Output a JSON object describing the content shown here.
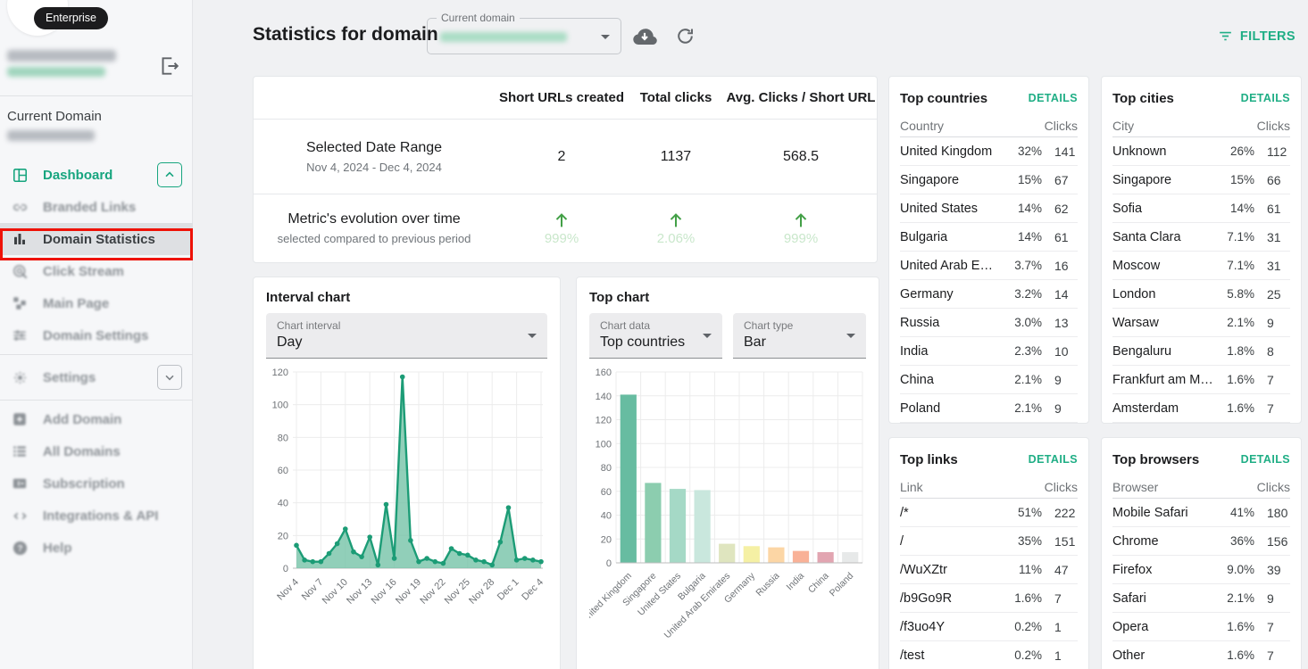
{
  "colors": {
    "accent_green": "#1fae85",
    "chart_line_green": "#1c9c76",
    "chart_area_green": "#76c3a8",
    "trend_arrow_green": "#43a047",
    "annotation_red": "#ee1207",
    "badge_black": "#1c1c1e"
  },
  "sidebar": {
    "badge": "Enterprise",
    "current_domain_label": "Current Domain",
    "nav": [
      {
        "label": "Dashboard",
        "icon": "dashboard",
        "state": "active-green",
        "chevron": "up"
      },
      {
        "label": "Branded Links",
        "icon": "link",
        "state": "blurred"
      },
      {
        "label": "Domain Statistics",
        "icon": "bar-chart",
        "state": "selected"
      },
      {
        "label": "Click Stream",
        "icon": "click-stream",
        "state": "blurred"
      },
      {
        "label": "Main Page",
        "icon": "main-page",
        "state": "blurred"
      },
      {
        "label": "Domain Settings",
        "icon": "sliders",
        "state": "blurred",
        "divider_after": true
      },
      {
        "label": "Settings",
        "icon": "gear",
        "state": "blurred",
        "chevron": "down",
        "tall": true,
        "divider_after": true
      },
      {
        "label": "Add Domain",
        "icon": "add-square",
        "state": "blurred"
      },
      {
        "label": "All Domains",
        "icon": "list",
        "state": "blurred"
      },
      {
        "label": "Subscription",
        "icon": "card",
        "state": "blurred"
      },
      {
        "label": "Integrations & API",
        "icon": "code",
        "state": "blurred"
      },
      {
        "label": "Help",
        "icon": "help",
        "state": "blurred"
      }
    ]
  },
  "header": {
    "title": "Statistics for domain",
    "domain_select_label": "Current domain",
    "filters_label": "FILTERS"
  },
  "summary": {
    "columns": [
      "Short URLs created",
      "Total clicks",
      "Avg. Clicks / Short URL"
    ],
    "rows": [
      {
        "title": "Selected Date Range",
        "subtitle": "Nov 4, 2024 - Dec 4, 2024",
        "values": [
          "2",
          "1137",
          "568.5"
        ]
      },
      {
        "title": "Metric's evolution over time",
        "subtitle": "selected compared to previous period",
        "trend": "up",
        "values": [
          "999%",
          "2.06%",
          "999%"
        ]
      }
    ]
  },
  "interval_chart": {
    "title": "Interval chart",
    "select_label": "Chart interval",
    "select_value": "Day"
  },
  "top_chart": {
    "title": "Top chart",
    "data_select_label": "Chart data",
    "data_select_value": "Top countries",
    "type_select_label": "Chart type",
    "type_select_value": "Bar"
  },
  "chart_data": [
    {
      "type": "area",
      "title": "Interval chart (clicks per day)",
      "x_tick_labels": [
        "Nov 4",
        "Nov 7",
        "Nov 10",
        "Nov 13",
        "Nov 16",
        "Nov 19",
        "Nov 22",
        "Nov 25",
        "Nov 28",
        "Dec 1",
        "Dec 4"
      ],
      "x_tick_every": 3,
      "values": [
        14,
        5,
        4,
        4,
        9,
        15,
        24,
        10,
        7,
        19,
        2,
        39,
        6,
        117,
        17,
        4,
        6,
        4,
        3,
        12,
        9,
        8,
        5,
        4,
        2,
        16,
        37,
        5,
        6,
        5,
        4
      ],
      "ylim": [
        0,
        120
      ],
      "yticks": [
        0,
        20,
        40,
        60,
        80,
        100,
        120
      ],
      "grid": true,
      "line_color": "#1c9c76",
      "fill_color": "#76c3a8"
    },
    {
      "type": "bar",
      "title": "Top countries by clicks",
      "categories": [
        "United Kingdom",
        "Singapore",
        "United States",
        "Bulgaria",
        "United Arab Emirates",
        "Germany",
        "Russia",
        "India",
        "China",
        "Poland"
      ],
      "values": [
        141,
        67,
        62,
        61,
        16,
        14,
        13,
        10,
        9,
        9
      ],
      "bar_colors": [
        "#67bca1",
        "#8ccdaf",
        "#a5d9c6",
        "#c9e7dd",
        "#dfe5bf",
        "#f5f0a4",
        "#fcd6a5",
        "#f9b197",
        "#e2a5b1",
        "#e7e9e9"
      ],
      "ylim": [
        0,
        160
      ],
      "yticks": [
        0,
        20,
        40,
        60,
        80,
        100,
        120,
        140,
        160
      ],
      "grid": true
    }
  ],
  "panels": [
    {
      "title": "Top countries",
      "details_label": "DETAILS",
      "col_name": "Country",
      "col_clicks": "Clicks",
      "rows": [
        [
          "United Kingdom",
          "32%",
          "141"
        ],
        [
          "Singapore",
          "15%",
          "67"
        ],
        [
          "United States",
          "14%",
          "62"
        ],
        [
          "Bulgaria",
          "14%",
          "61"
        ],
        [
          "United Arab Em…",
          "3.7%",
          "16"
        ],
        [
          "Germany",
          "3.2%",
          "14"
        ],
        [
          "Russia",
          "3.0%",
          "13"
        ],
        [
          "India",
          "2.3%",
          "10"
        ],
        [
          "China",
          "2.1%",
          "9"
        ],
        [
          "Poland",
          "2.1%",
          "9"
        ]
      ]
    },
    {
      "title": "Top cities",
      "details_label": "DETAILS",
      "col_name": "City",
      "col_clicks": "Clicks",
      "rows": [
        [
          "Unknown",
          "26%",
          "112"
        ],
        [
          "Singapore",
          "15%",
          "66"
        ],
        [
          "Sofia",
          "14%",
          "61"
        ],
        [
          "Santa Clara",
          "7.1%",
          "31"
        ],
        [
          "Moscow",
          "7.1%",
          "31"
        ],
        [
          "London",
          "5.8%",
          "25"
        ],
        [
          "Warsaw",
          "2.1%",
          "9"
        ],
        [
          "Bengaluru",
          "1.8%",
          "8"
        ],
        [
          "Frankfurt am M…",
          "1.6%",
          "7"
        ],
        [
          "Amsterdam",
          "1.6%",
          "7"
        ]
      ]
    },
    {
      "title": "Top links",
      "details_label": "DETAILS",
      "col_name": "Link",
      "col_clicks": "Clicks",
      "rows": [
        [
          "/*",
          "51%",
          "222"
        ],
        [
          "/",
          "35%",
          "151"
        ],
        [
          "/WuXZtr",
          "11%",
          "47"
        ],
        [
          "/b9Go9R",
          "1.6%",
          "7"
        ],
        [
          "/f3uo4Y",
          "0.2%",
          "1"
        ],
        [
          "/test",
          "0.2%",
          "1"
        ]
      ]
    },
    {
      "title": "Top browsers",
      "details_label": "DETAILS",
      "col_name": "Browser",
      "col_clicks": "Clicks",
      "rows": [
        [
          "Mobile Safari",
          "41%",
          "180"
        ],
        [
          "Chrome",
          "36%",
          "156"
        ],
        [
          "Firefox",
          "9.0%",
          "39"
        ],
        [
          "Safari",
          "2.1%",
          "9"
        ],
        [
          "Opera",
          "1.6%",
          "7"
        ],
        [
          "Other",
          "1.6%",
          "7"
        ]
      ]
    }
  ]
}
